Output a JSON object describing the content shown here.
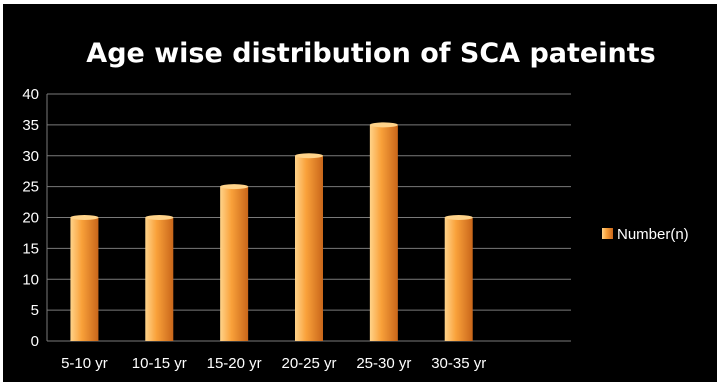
{
  "chart_data": {
    "type": "bar",
    "title": "Age wise distribution of SCA pateints",
    "xlabel": "",
    "ylabel": "",
    "categories": [
      "5-10 yr",
      "10-15 yr",
      "15-20 yr",
      "20-25 yr",
      "25-30 yr",
      "30-35 yr"
    ],
    "series": [
      {
        "name": "Number(n)",
        "values": [
          20,
          20,
          25,
          30,
          35,
          20
        ]
      }
    ],
    "ylim": [
      0,
      40
    ],
    "yticks": [
      0,
      5,
      10,
      15,
      20,
      25,
      30,
      35,
      40
    ],
    "grid": true,
    "legend_position": "right",
    "colors": {
      "background": "#000000",
      "bar_light": "#ffd38a",
      "bar_mid": "#f9a13a",
      "bar_dark": "#c9661a",
      "grid": "#7a7a7a",
      "text": "#ffffff"
    }
  }
}
